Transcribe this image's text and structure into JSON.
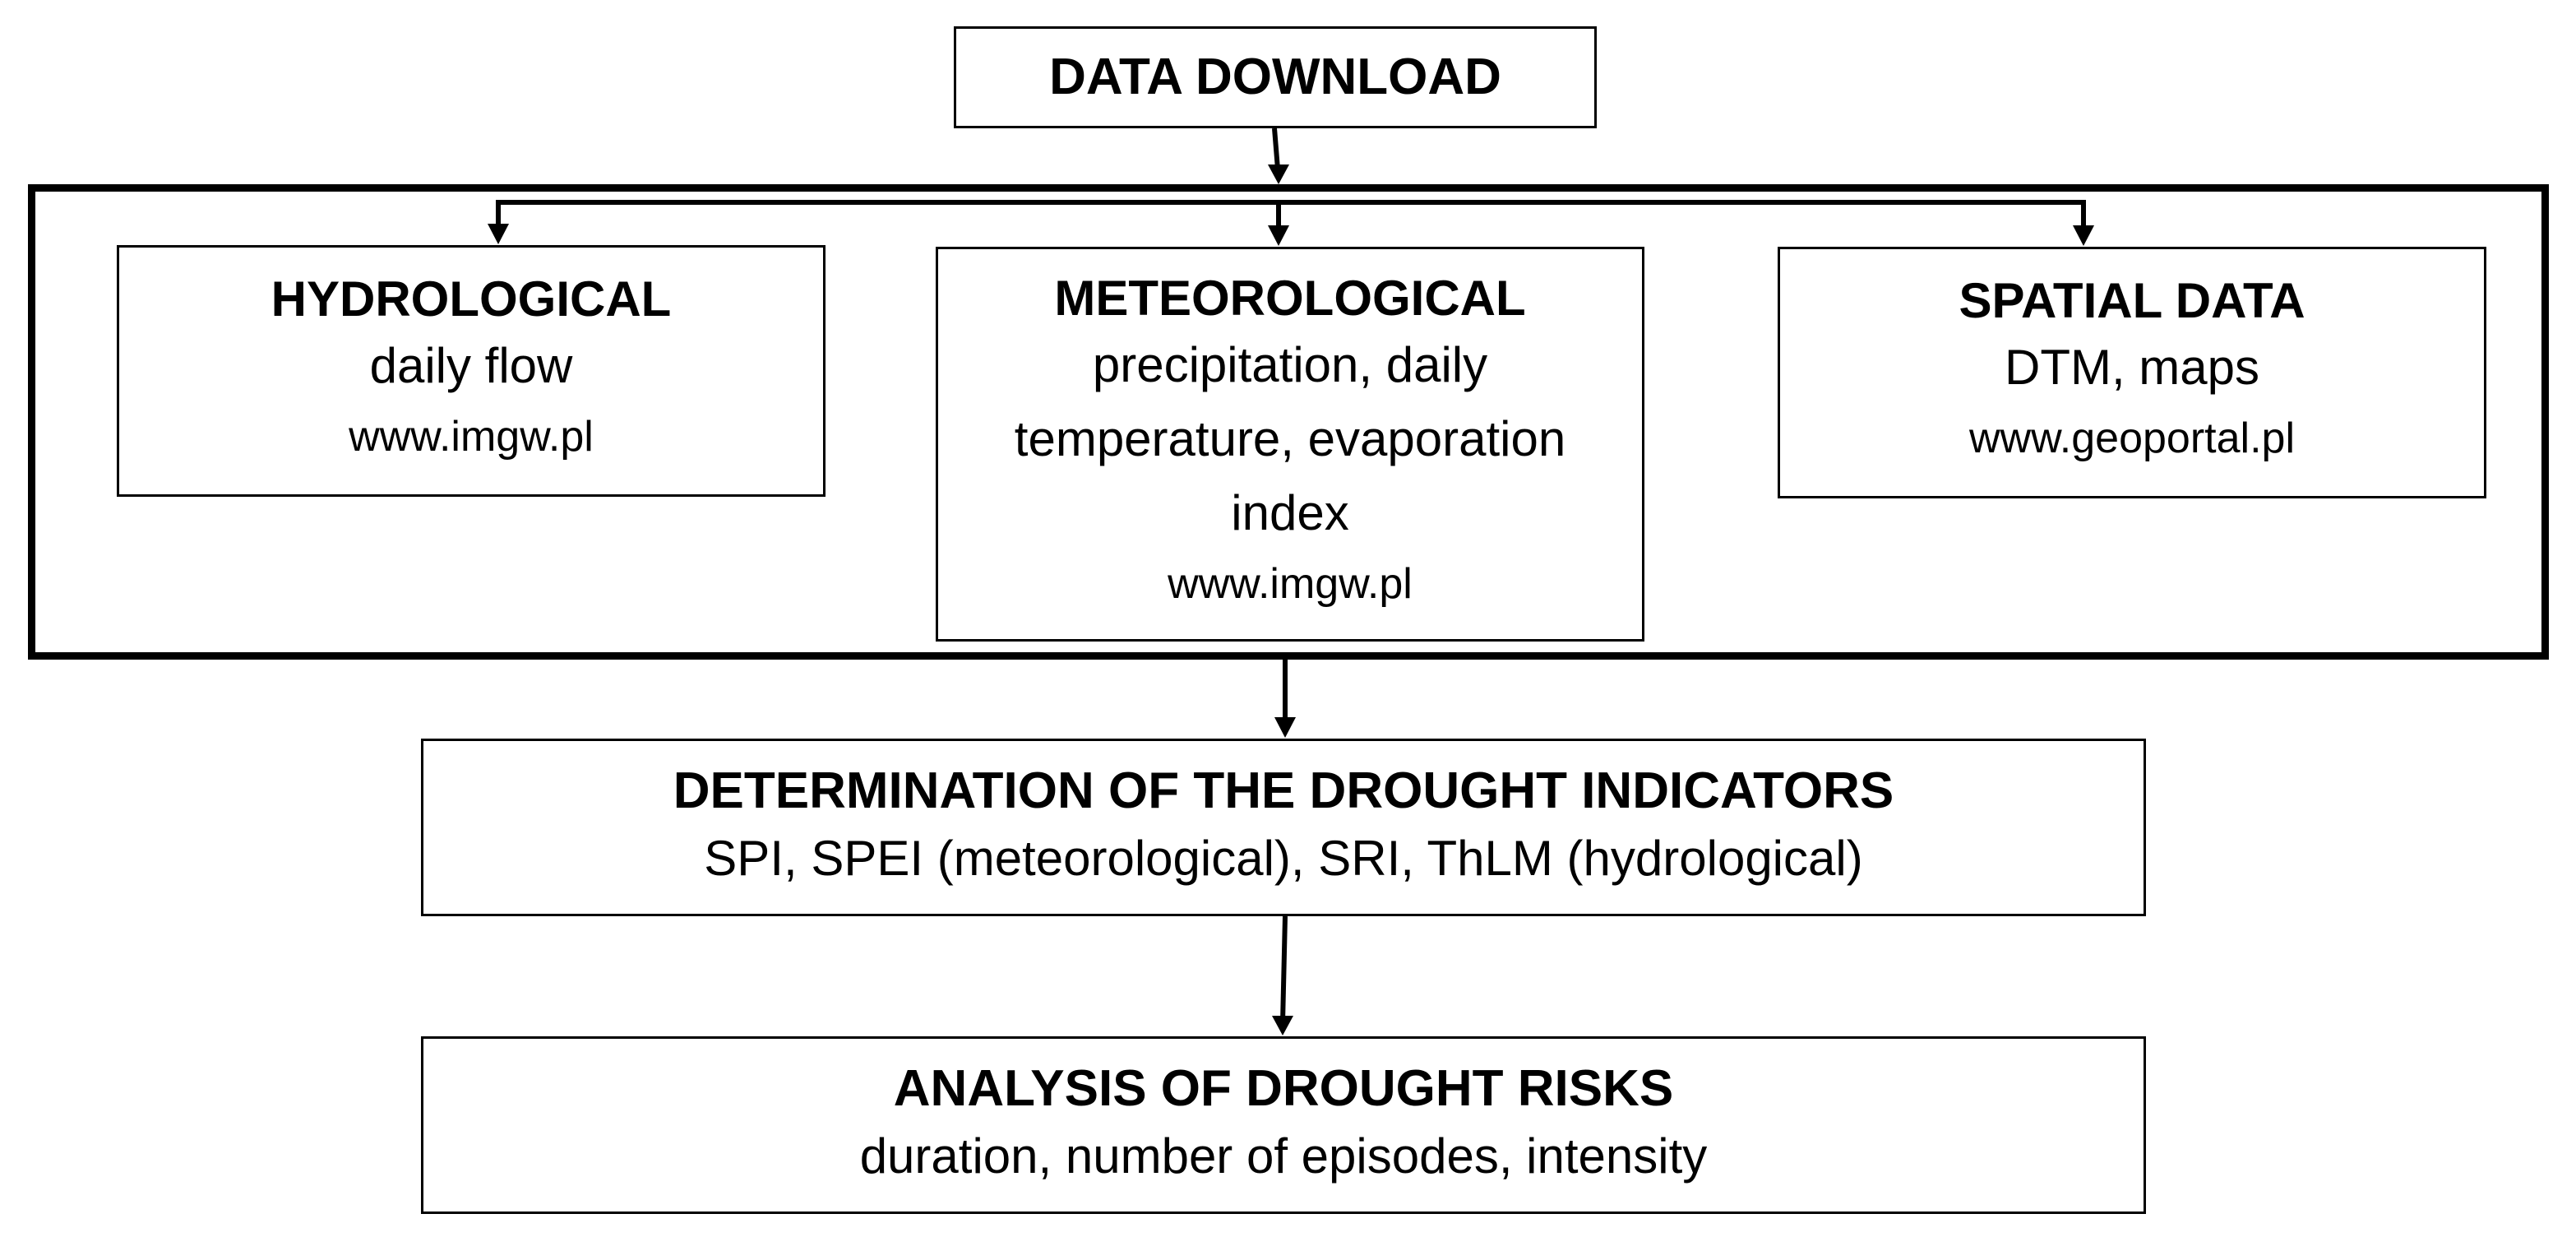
{
  "download": {
    "title": "DATA DOWNLOAD"
  },
  "hydrological": {
    "title": "HYDROLOGICAL",
    "description": "daily flow",
    "source": "www.imgw.pl"
  },
  "meteorological": {
    "title": "METEOROLOGICAL",
    "description": "precipitation, daily temperature, evaporation index",
    "source": "www.imgw.pl"
  },
  "spatial": {
    "title": "SPATIAL DATA",
    "description": "DTM, maps",
    "source": "www.geoportal.pl"
  },
  "indicators": {
    "title": "DETERMINATION OF THE DROUGHT INDICATORS",
    "description": "SPI, SPEI (meteorological), SRI, ThLM (hydrological)"
  },
  "risks": {
    "title": "ANALYSIS OF DROUGHT RISKS",
    "description": "duration, number of episodes, intensity"
  }
}
